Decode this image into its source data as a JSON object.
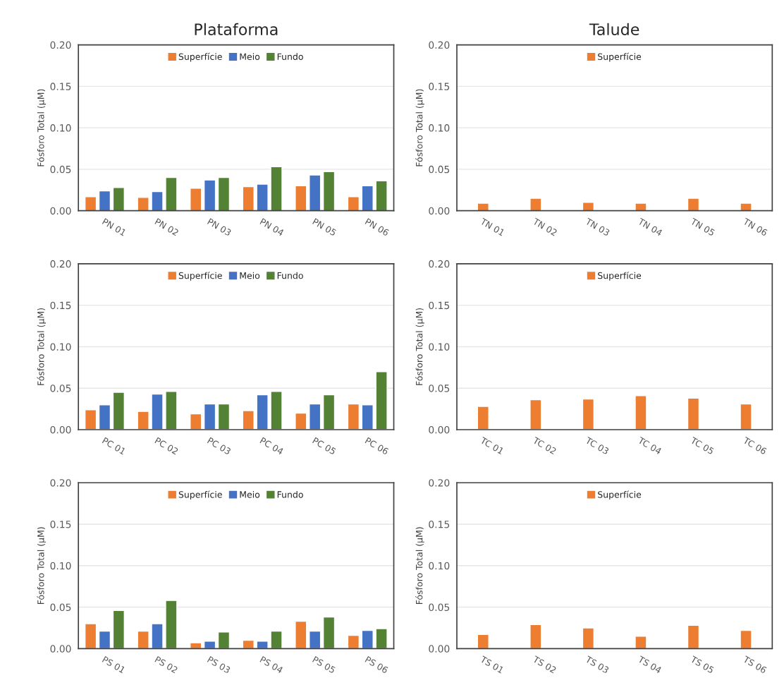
{
  "chart_data": [
    {
      "type": "bar",
      "title": "Plataforma",
      "ylabel": "Fósforo Total (µM)",
      "categories": [
        "PN 01",
        "PN 02",
        "PN 03",
        "PN 04",
        "PN 05",
        "PN 06"
      ],
      "ylim": [
        0,
        0.2
      ],
      "yticks": [
        {
          "value": 0,
          "label": "0.00"
        },
        {
          "value": 0.05,
          "label": "0.05"
        },
        {
          "value": 0.1,
          "label": "0.10"
        },
        {
          "value": 0.15,
          "label": "0.15"
        },
        {
          "value": 0.2,
          "label": "0.20"
        }
      ],
      "grid": "y",
      "legend": "top",
      "series": [
        {
          "name": "Superfície",
          "color": "#ed7d31",
          "values": [
            0.017,
            0.016,
            0.027,
            0.029,
            0.03,
            0.017
          ]
        },
        {
          "name": "Meio",
          "color": "#4472c4",
          "values": [
            0.024,
            0.023,
            0.037,
            0.032,
            0.043,
            0.03
          ]
        },
        {
          "name": "Fundo",
          "color": "#548235",
          "values": [
            0.028,
            0.04,
            0.04,
            0.053,
            0.047,
            0.036
          ]
        }
      ]
    },
    {
      "type": "bar",
      "title": "Talude",
      "ylabel": "Fósforo Total (µM)",
      "categories": [
        "TN 01",
        "TN 02",
        "TN 03",
        "TN 04",
        "TN 05",
        "TN 06"
      ],
      "ylim": [
        0,
        0.2
      ],
      "yticks": [
        {
          "value": 0,
          "label": "0.00"
        },
        {
          "value": 0.05,
          "label": "0.05"
        },
        {
          "value": 0.1,
          "label": "0.10"
        },
        {
          "value": 0.15,
          "label": "0.15"
        },
        {
          "value": 0.2,
          "label": "0.20"
        }
      ],
      "grid": "y",
      "legend": "top",
      "series": [
        {
          "name": "Superfície",
          "color": "#ed7d31",
          "values": [
            0.009,
            0.015,
            0.01,
            0.009,
            0.015,
            0.009
          ]
        }
      ]
    },
    {
      "type": "bar",
      "ylabel": "Fósforo Total (µM)",
      "categories": [
        "PC 01",
        "PC 02",
        "PC 03",
        "PC 04",
        "PC 05",
        "PC 06"
      ],
      "ylim": [
        0,
        0.2
      ],
      "yticks": [
        {
          "value": 0,
          "label": "0.00"
        },
        {
          "value": 0.05,
          "label": "0.05"
        },
        {
          "value": 0.1,
          "label": "0.10"
        },
        {
          "value": 0.15,
          "label": "0.15"
        },
        {
          "value": 0.2,
          "label": "0.20"
        }
      ],
      "grid": "y",
      "legend": "top",
      "series": [
        {
          "name": "Superfície",
          "color": "#ed7d31",
          "values": [
            0.024,
            0.022,
            0.019,
            0.023,
            0.02,
            0.031
          ]
        },
        {
          "name": "Meio",
          "color": "#4472c4",
          "values": [
            0.03,
            0.043,
            0.031,
            0.042,
            0.031,
            0.03
          ]
        },
        {
          "name": "Fundo",
          "color": "#548235",
          "values": [
            0.045,
            0.046,
            0.031,
            0.046,
            0.042,
            0.07
          ]
        }
      ]
    },
    {
      "type": "bar",
      "ylabel": "Fósforo Total (µM)",
      "categories": [
        "TC 01",
        "TC 02",
        "TC 03",
        "TC 04",
        "TC 05",
        "TC 06"
      ],
      "ylim": [
        0,
        0.2
      ],
      "yticks": [
        {
          "value": 0,
          "label": "0.00"
        },
        {
          "value": 0.05,
          "label": "0.05"
        },
        {
          "value": 0.1,
          "label": "0.10"
        },
        {
          "value": 0.15,
          "label": "0.15"
        },
        {
          "value": 0.2,
          "label": "0.20"
        }
      ],
      "grid": "y",
      "legend": "top",
      "series": [
        {
          "name": "Superfície",
          "color": "#ed7d31",
          "values": [
            0.028,
            0.036,
            0.037,
            0.041,
            0.038,
            0.031
          ]
        }
      ]
    },
    {
      "type": "bar",
      "ylabel": "Fósforo Total (µM)",
      "categories": [
        "PS 01",
        "PS 02",
        "PS 03",
        "PS 04",
        "PS 05",
        "PS 06"
      ],
      "ylim": [
        0,
        0.2
      ],
      "yticks": [
        {
          "value": 0,
          "label": "0.00"
        },
        {
          "value": 0.05,
          "label": "0.05"
        },
        {
          "value": 0.1,
          "label": "0.10"
        },
        {
          "value": 0.15,
          "label": "0.15"
        },
        {
          "value": 0.2,
          "label": "0.20"
        }
      ],
      "grid": "y",
      "legend": "top",
      "series": [
        {
          "name": "Superfície",
          "color": "#ed7d31",
          "values": [
            0.03,
            0.021,
            0.007,
            0.01,
            0.033,
            0.016
          ]
        },
        {
          "name": "Meio",
          "color": "#4472c4",
          "values": [
            0.021,
            0.03,
            0.009,
            0.009,
            0.021,
            0.022
          ]
        },
        {
          "name": "Fundo",
          "color": "#548235",
          "values": [
            0.046,
            0.058,
            0.02,
            0.021,
            0.038,
            0.024
          ]
        }
      ]
    },
    {
      "type": "bar",
      "ylabel": "Fósforo Total (µM)",
      "categories": [
        "TS 01",
        "TS 02",
        "TS 03",
        "TS 04",
        "TS 05",
        "TS 06"
      ],
      "ylim": [
        0,
        0.2
      ],
      "yticks": [
        {
          "value": 0,
          "label": "0.00"
        },
        {
          "value": 0.05,
          "label": "0.05"
        },
        {
          "value": 0.1,
          "label": "0.10"
        },
        {
          "value": 0.15,
          "label": "0.15"
        },
        {
          "value": 0.2,
          "label": "0.20"
        }
      ],
      "grid": "y",
      "legend": "top",
      "series": [
        {
          "name": "Superfície",
          "color": "#ed7d31",
          "values": [
            0.017,
            0.029,
            0.025,
            0.015,
            0.028,
            0.022
          ]
        }
      ]
    }
  ]
}
